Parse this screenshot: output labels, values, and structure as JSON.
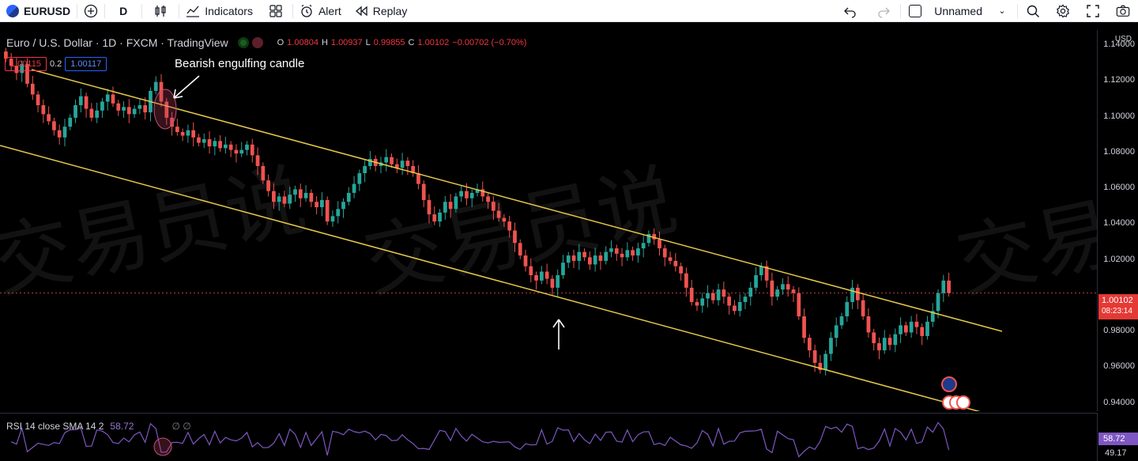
{
  "toolbar": {
    "symbol": "EURUSD",
    "interval": "D",
    "indicators_label": "Indicators",
    "alert_label": "Alert",
    "replay_label": "Replay",
    "layout_name": "Unnamed",
    "icons": [
      "symbol-logo",
      "add-icon",
      "candles-icon",
      "indicators-icon",
      "templates-icon",
      "alert-icon",
      "replay-icon",
      "undo-icon",
      "redo-icon",
      "search-icon",
      "settings-icon",
      "fullscreen-icon",
      "camera-icon"
    ]
  },
  "legend": {
    "title": "Euro / U.S. Dollar · 1D · FXCM · TradingView",
    "open_label": "O",
    "open": "1.00804",
    "high_label": "H",
    "high": "1.00937",
    "low_label": "L",
    "low": "0.99855",
    "close_label": "C",
    "close": "1.00102",
    "change": "−0.00702 (−0.70%)"
  },
  "bidask": {
    "bid": "1.00115",
    "spread": "0.2",
    "ask": "1.00117"
  },
  "annotation": {
    "text": "Bearish engulfing candle"
  },
  "price_axis": {
    "currency": "USD",
    "ticks": [
      "1.14000",
      "1.12000",
      "1.10000",
      "1.08000",
      "1.06000",
      "1.04000",
      "1.02000",
      "0.98000",
      "0.96000",
      "0.94000"
    ],
    "last_price": "1.00102",
    "countdown": "08:23:14"
  },
  "rsi": {
    "label": "RSI 14 close SMA 14 2",
    "value": "58.72",
    "tag": "58.72",
    "low_value": "49.17"
  },
  "colors": {
    "up": "#26a69a",
    "down": "#ef5350",
    "channel": "#e6c84a",
    "rsi": "#7e57c2"
  },
  "chart_data": {
    "type": "candlestick",
    "ylim": [
      0.935,
      1.148
    ],
    "y_ticks": [
      1.14,
      1.12,
      1.1,
      1.08,
      1.06,
      1.04,
      1.02,
      0.98,
      0.96,
      0.94
    ],
    "last_close": 1.00102,
    "closes": [
      1.132,
      1.128,
      1.124,
      1.129,
      1.118,
      1.112,
      1.106,
      1.101,
      1.097,
      1.092,
      1.088,
      1.094,
      1.099,
      1.106,
      1.111,
      1.104,
      1.099,
      1.103,
      1.108,
      1.112,
      1.107,
      1.103,
      1.105,
      1.101,
      1.104,
      1.106,
      1.102,
      1.114,
      1.119,
      1.108,
      1.099,
      1.094,
      1.091,
      1.089,
      1.092,
      1.088,
      1.085,
      1.087,
      1.083,
      1.086,
      1.082,
      1.084,
      1.081,
      1.079,
      1.081,
      1.084,
      1.078,
      1.072,
      1.064,
      1.058,
      1.052,
      1.055,
      1.051,
      1.056,
      1.059,
      1.054,
      1.057,
      1.052,
      1.049,
      1.053,
      1.041,
      1.044,
      1.048,
      1.052,
      1.057,
      1.062,
      1.068,
      1.072,
      1.076,
      1.072,
      1.074,
      1.077,
      1.073,
      1.071,
      1.075,
      1.072,
      1.068,
      1.062,
      1.053,
      1.045,
      1.041,
      1.046,
      1.052,
      1.048,
      1.055,
      1.058,
      1.054,
      1.057,
      1.059,
      1.055,
      1.052,
      1.047,
      1.043,
      1.041,
      1.036,
      1.029,
      1.022,
      1.016,
      1.011,
      1.008,
      1.013,
      1.009,
      1.004,
      1.011,
      1.018,
      1.022,
      1.019,
      1.024,
      1.021,
      1.017,
      1.022,
      1.019,
      1.024,
      1.026,
      1.023,
      1.021,
      1.025,
      1.022,
      1.026,
      1.029,
      1.034,
      1.031,
      1.026,
      1.021,
      1.019,
      1.016,
      1.012,
      1.004,
      0.996,
      0.994,
      0.998,
      1.001,
      0.997,
      1.003,
      0.999,
      0.994,
      0.991,
      0.996,
      0.999,
      1.004,
      1.011,
      1.016,
      1.008,
      0.999,
      1.003,
      1.006,
      1.003,
      1.001,
      0.988,
      0.976,
      0.969,
      0.962,
      0.958,
      0.967,
      0.976,
      0.983,
      0.988,
      0.996,
      1.004,
      0.997,
      0.988,
      0.979,
      0.973,
      0.969,
      0.976,
      0.972,
      0.978,
      0.983,
      0.979,
      0.985,
      0.982,
      0.977,
      0.985,
      0.991,
      1.001,
      1.008,
      1.001
    ]
  }
}
